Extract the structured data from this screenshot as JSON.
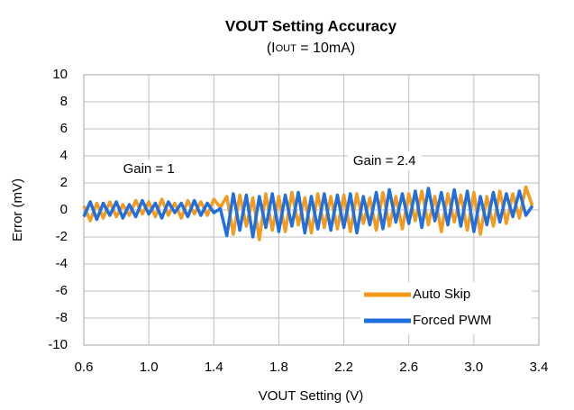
{
  "chart_data": {
    "type": "line",
    "title": "VOUT Setting Accuracy",
    "subtitle": [
      "(I",
      "OUT",
      " = 10mA)"
    ],
    "x_label": "VOUT Setting (V)",
    "y_label": "Error (mV)",
    "annotations": [
      {
        "text": "Gain = 1",
        "x": 1.0,
        "y": 3
      },
      {
        "text": "Gain = 2.4",
        "x": 2.45,
        "y": 3.6
      }
    ],
    "xlim": [
      0.6,
      3.4
    ],
    "xticks": [
      0.6,
      {
        "value": 1,
        "label": "1.0"
      },
      1.4,
      1.8,
      2.2,
      2.6,
      {
        "value": 3,
        "label": "3.0"
      },
      3.4
    ],
    "ylim": [
      -10,
      10
    ],
    "yticks": [
      -10,
      -8,
      -6,
      -4,
      -2,
      0,
      2,
      4,
      6,
      8,
      10
    ],
    "grid": true,
    "legend": "lower right",
    "x": [
      0.6,
      0.64,
      0.68,
      0.72,
      0.76,
      0.8,
      0.84,
      0.88,
      0.92,
      0.96,
      1,
      1.04,
      1.08,
      1.12,
      1.16,
      1.2,
      1.24,
      1.28,
      1.32,
      1.36,
      1.4,
      1.44,
      1.48,
      1.52,
      1.56,
      1.6,
      1.64,
      1.68,
      1.72,
      1.76,
      1.8,
      1.84,
      1.88,
      1.92,
      1.96,
      2,
      2.04,
      2.08,
      2.12,
      2.16,
      2.2,
      2.24,
      2.28,
      2.32,
      2.36,
      2.4,
      2.44,
      2.48,
      2.52,
      2.56,
      2.6,
      2.64,
      2.68,
      2.72,
      2.76,
      2.8,
      2.84,
      2.88,
      2.92,
      2.96,
      3,
      3.04,
      3.08,
      3.12,
      3.16,
      3.2,
      3.24,
      3.28,
      3.32,
      3.36
    ],
    "series": [
      {
        "name": "Auto Skip",
        "color": "#f59a1b",
        "values": [
          0.3,
          -0.8,
          0.5,
          -0.6,
          0.6,
          -0.5,
          0.4,
          -0.4,
          0.7,
          -0.3,
          0.6,
          -0.5,
          0.8,
          -0.4,
          0.5,
          -0.6,
          0.7,
          -0.3,
          0.6,
          -0.4,
          0.8,
          0.2,
          1.0,
          -1.8,
          1.1,
          -1.2,
          0.9,
          -2.2,
          1.2,
          -1.5,
          1.0,
          -1.6,
          1.3,
          -1.1,
          0.9,
          -1.7,
          1.2,
          -1.3,
          1.0,
          -1.4,
          1.1,
          -1.6,
          1.2,
          -1.0,
          0.9,
          -1.5,
          1.3,
          -1.2,
          1.0,
          -1.4,
          1.2,
          -0.8,
          1.4,
          -1.1,
          1.0,
          -1.6,
          1.2,
          -0.9,
          1.1,
          -1.5,
          1.3,
          -1.8,
          1.0,
          -1.2,
          1.4,
          -1.0,
          1.2,
          -0.6,
          1.7,
          0.3
        ]
      },
      {
        "name": "Forced PWM",
        "color": "#1f6fe0",
        "values": [
          -0.5,
          0.6,
          -0.7,
          0.5,
          -0.4,
          0.6,
          -0.6,
          0.4,
          -0.5,
          0.7,
          -0.3,
          0.5,
          -0.6,
          0.6,
          -0.2,
          0.5,
          -0.5,
          0.7,
          -0.4,
          0.5,
          -0.2,
          0.1,
          -1.9,
          1.2,
          -1.5,
          1.1,
          -2.0,
          1.0,
          -1.3,
          1.2,
          -1.6,
          1.1,
          -1.2,
          1.3,
          -1.7,
          1.0,
          -1.4,
          1.2,
          -1.5,
          1.1,
          -1.3,
          1.2,
          -1.7,
          1.0,
          -1.1,
          1.3,
          -1.4,
          1.5,
          -0.9,
          1.2,
          -1.0,
          1.4,
          -1.3,
          1.6,
          -0.8,
          1.3,
          -1.1,
          1.5,
          -1.2,
          1.4,
          -1.6,
          1.0,
          -1.1,
          1.3,
          -0.9,
          1.2,
          -0.5,
          1.4,
          -0.4,
          0.3
        ]
      }
    ]
  }
}
